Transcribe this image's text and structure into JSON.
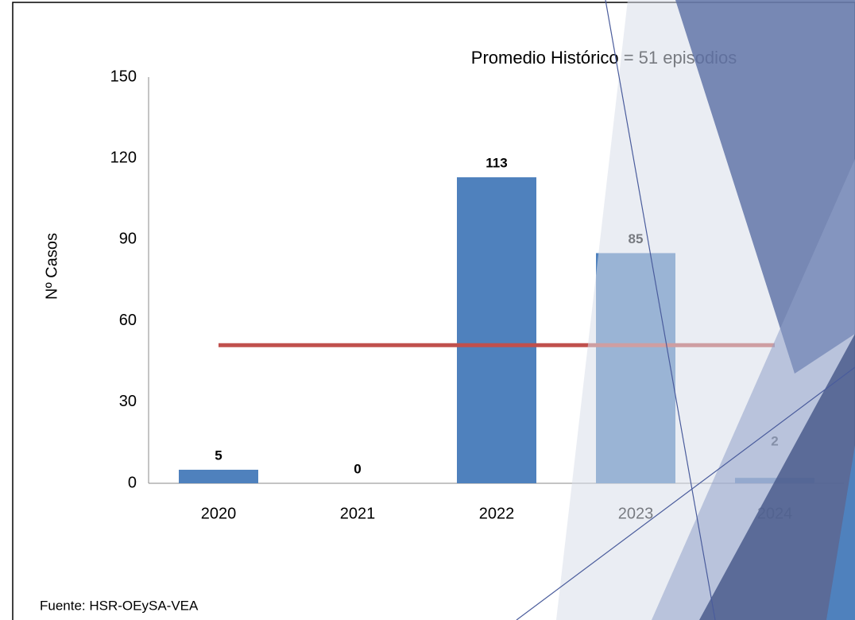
{
  "chart_data": {
    "type": "bar",
    "annotation": "Promedio Histórico = 51 episodios",
    "y_label": "Nº  Casos",
    "source": "Fuente:  HSR-OEySA-VEA",
    "categories": [
      "2020",
      "2021",
      "2022",
      "2023",
      "2024"
    ],
    "values": [
      5,
      0,
      113,
      85,
      2
    ],
    "color": "#4f81bd",
    "average_line": {
      "value": 51,
      "color": "#c0504d"
    },
    "ylim": [
      0,
      150
    ],
    "yticks": [
      0,
      30,
      60,
      90,
      120,
      150
    ],
    "grid": false
  }
}
